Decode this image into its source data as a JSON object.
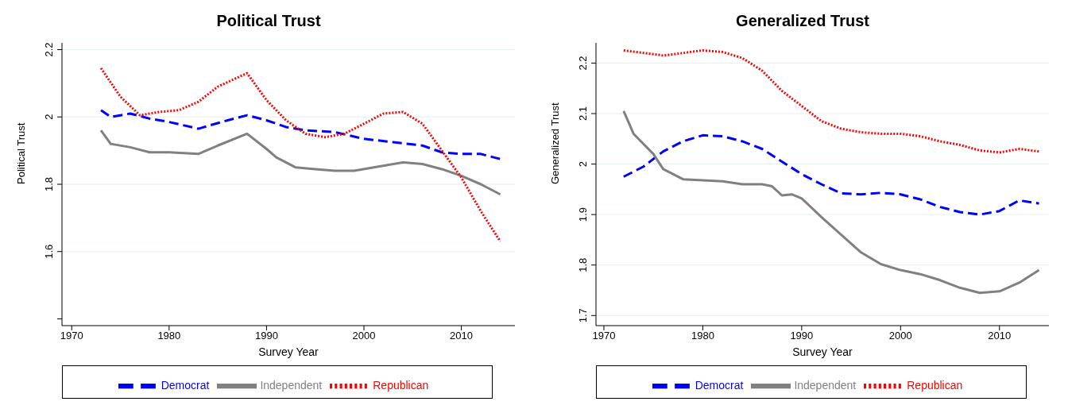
{
  "chart_data": [
    {
      "type": "line",
      "title": "Political Trust",
      "xlabel": "Survey Year",
      "ylabel": "Political Trust",
      "xlim": [
        1969,
        2015.5
      ],
      "xticks": [
        1970,
        1980,
        1990,
        2000,
        2010
      ],
      "ylim": [
        1.38,
        2.22
      ],
      "yticks": [
        {
          "value": 1.4,
          "label": null
        },
        1.6,
        1.8,
        2,
        2.2
      ],
      "grid": "y",
      "legend": "bottom",
      "series": [
        {
          "name": "Democrat",
          "color": "#0000ff",
          "line_style": "dashed",
          "x": [
            1973,
            1974,
            1976,
            1978,
            1980,
            1983,
            1986,
            1988,
            1990,
            1992,
            1994,
            1997,
            2000,
            2003,
            2006,
            2008,
            2010,
            2012,
            2014
          ],
          "values": [
            2.02,
            2.0,
            2.01,
            1.995,
            1.985,
            1.965,
            1.99,
            2.005,
            1.99,
            1.97,
            1.96,
            1.955,
            1.935,
            1.925,
            1.915,
            1.895,
            1.89,
            1.89,
            1.875
          ]
        },
        {
          "name": "Independent",
          "color": "#808080",
          "line_style": "solid",
          "x": [
            1973,
            1974,
            1976,
            1978,
            1980,
            1983,
            1985,
            1988,
            1990,
            1991,
            1993,
            1995,
            1997,
            1999,
            2001,
            2004,
            2006,
            2008,
            2010,
            2012,
            2014
          ],
          "values": [
            1.96,
            1.92,
            1.91,
            1.895,
            1.895,
            1.89,
            1.915,
            1.95,
            1.905,
            1.88,
            1.85,
            1.845,
            1.84,
            1.84,
            1.85,
            1.865,
            1.86,
            1.845,
            1.825,
            1.8,
            1.77
          ]
        },
        {
          "name": "Republican",
          "color": "#ff0000",
          "line_style": "dotted",
          "x": [
            1973,
            1975,
            1977,
            1979,
            1981,
            1983,
            1985,
            1988,
            1990,
            1992,
            1994,
            1996,
            1998,
            2000,
            2002,
            2004,
            2006,
            2008,
            2010,
            2012,
            2014
          ],
          "values": [
            2.145,
            2.06,
            2.005,
            2.015,
            2.02,
            2.045,
            2.09,
            2.13,
            2.05,
            1.99,
            1.95,
            1.94,
            1.95,
            1.98,
            2.01,
            2.015,
            1.98,
            1.9,
            1.82,
            1.72,
            1.63
          ]
        }
      ]
    },
    {
      "type": "line",
      "title": "Generalized Trust",
      "xlabel": "Survey Year",
      "ylabel": "Generalized Trust",
      "xlim": [
        1969.2,
        2015
      ],
      "xticks": [
        1970,
        1980,
        1990,
        2000,
        2010
      ],
      "ylim": [
        1.68,
        2.24
      ],
      "yticks": [
        1.7,
        1.8,
        1.9,
        2,
        2.1,
        2.2
      ],
      "grid": "y",
      "legend": "bottom",
      "series": [
        {
          "name": "Democrat",
          "color": "#0000ff",
          "line_style": "dashed",
          "x": [
            1972,
            1974,
            1976,
            1978,
            1980,
            1982,
            1984,
            1986,
            1988,
            1990,
            1992,
            1994,
            1996,
            1998,
            2000,
            2002,
            2004,
            2006,
            2008,
            2010,
            2012,
            2014
          ],
          "values": [
            1.975,
            1.995,
            2.025,
            2.045,
            2.057,
            2.055,
            2.045,
            2.03,
            2.005,
            1.98,
            1.96,
            1.942,
            1.94,
            1.943,
            1.94,
            1.93,
            1.915,
            1.905,
            1.9,
            1.907,
            1.928,
            1.922
          ]
        },
        {
          "name": "Independent",
          "color": "#808080",
          "line_style": "solid",
          "x": [
            1972,
            1973,
            1975,
            1976,
            1978,
            1980,
            1982,
            1984,
            1986,
            1987,
            1988,
            1989,
            1990,
            1992,
            1994,
            1996,
            1998,
            2000,
            2002,
            2004,
            2006,
            2008,
            2010,
            2012,
            2014
          ],
          "values": [
            2.105,
            2.06,
            2.02,
            1.99,
            1.97,
            1.968,
            1.966,
            1.96,
            1.96,
            1.956,
            1.938,
            1.94,
            1.932,
            1.895,
            1.86,
            1.825,
            1.802,
            1.79,
            1.782,
            1.77,
            1.755,
            1.745,
            1.748,
            1.765,
            1.79
          ]
        },
        {
          "name": "Republican",
          "color": "#ff0000",
          "line_style": "dotted",
          "x": [
            1972,
            1974,
            1976,
            1978,
            1980,
            1982,
            1984,
            1986,
            1988,
            1990,
            1992,
            1994,
            1996,
            1998,
            2000,
            2002,
            2004,
            2006,
            2008,
            2010,
            2012,
            2014
          ],
          "values": [
            2.225,
            2.22,
            2.215,
            2.22,
            2.225,
            2.222,
            2.21,
            2.185,
            2.145,
            2.115,
            2.085,
            2.07,
            2.063,
            2.06,
            2.06,
            2.055,
            2.045,
            2.038,
            2.027,
            2.023,
            2.03,
            2.025
          ]
        }
      ]
    }
  ]
}
